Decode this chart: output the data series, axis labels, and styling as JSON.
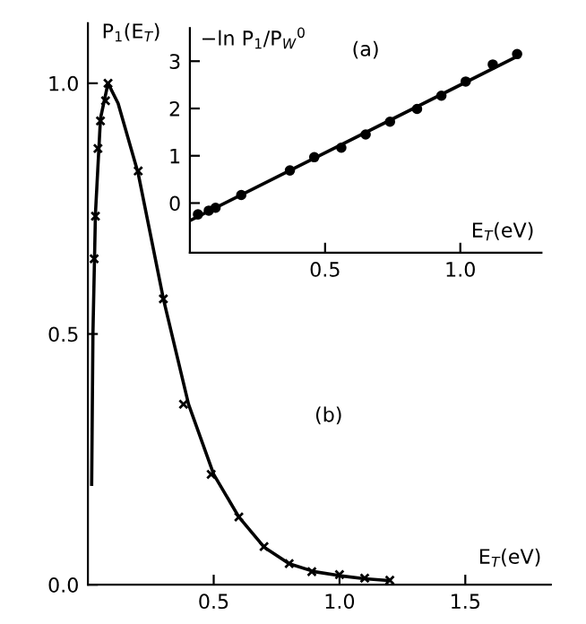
{
  "chart_data": [
    {
      "type": "scatter",
      "xlabel": "E$_{T}$(eV)",
      "ylabel": "P$_{1}$(E$_{T}$)",
      "annotations": [
        "(b)"
      ],
      "xlim": [
        0,
        1.84
      ],
      "ylim": [
        0,
        1.12
      ],
      "xticks": [
        {
          "value": 0.5,
          "label": "0.5"
        },
        {
          "value": 1,
          "label": "1.0"
        },
        {
          "value": 1.5,
          "label": "1.5"
        }
      ],
      "yticks": [
        {
          "value": 0,
          "label": "0.0"
        },
        {
          "value": 0.5,
          "label": "0.5"
        },
        {
          "value": 1,
          "label": "1.0"
        }
      ],
      "grid": false,
      "legend": false,
      "series": [
        {
          "type": "line",
          "color": "#000000",
          "line_style": "solid",
          "marker": "none",
          "x": [
            0.015,
            0.02,
            0.03,
            0.05,
            0.08,
            0.12,
            0.2,
            0.3,
            0.4,
            0.5,
            0.6,
            0.7,
            0.8,
            0.9,
            1.0,
            1.1,
            1.2
          ],
          "values": [
            0.2,
            0.5,
            0.74,
            0.93,
            1.0,
            0.96,
            0.82,
            0.57,
            0.36,
            0.22,
            0.135,
            0.075,
            0.042,
            0.026,
            0.018,
            0.012,
            0.008
          ]
        },
        {
          "type": "scatter",
          "color": "#000000",
          "marker": "cross",
          "x": [
            0.025,
            0.03,
            0.04,
            0.05,
            0.07,
            0.08,
            0.2,
            0.3,
            0.38,
            0.49,
            0.6,
            0.7,
            0.8,
            0.89,
            1.0,
            1.1,
            1.2
          ],
          "values": [
            0.65,
            0.735,
            0.87,
            0.925,
            0.965,
            1.0,
            0.825,
            0.57,
            0.36,
            0.22,
            0.135,
            0.076,
            0.042,
            0.026,
            0.02,
            0.013,
            0.009
          ]
        }
      ]
    },
    {
      "type": "scatter",
      "xlabel": "E$_{T}$(eV)",
      "ylabel": "−ln P$_{1}$/P$_{W}$$^{0}$",
      "annotations": [
        "(a)"
      ],
      "xlim": [
        0,
        1.3
      ],
      "ylim": [
        -1.05,
        3.7
      ],
      "xticks": [
        {
          "value": 0.5,
          "label": "0.5"
        },
        {
          "value": 1,
          "label": "1.0"
        }
      ],
      "yticks": [
        0,
        1,
        2,
        3
      ],
      "grid": false,
      "legend": false,
      "series": [
        {
          "type": "line",
          "color": "#000000",
          "line_style": "solid",
          "marker": "none",
          "x": [
            0,
            1.21
          ],
          "values": [
            -0.37,
            3.1
          ]
        },
        {
          "type": "scatter",
          "color": "#000000",
          "marker": "circle",
          "x": [
            0.03,
            0.07,
            0.095,
            0.19,
            0.37,
            0.46,
            0.56,
            0.65,
            0.74,
            0.84,
            0.93,
            1.02,
            1.12,
            1.21
          ],
          "values": [
            -0.24,
            -0.16,
            -0.1,
            0.17,
            0.69,
            0.97,
            1.17,
            1.45,
            1.72,
            1.99,
            2.27,
            2.57,
            2.93,
            3.15
          ]
        }
      ]
    }
  ]
}
